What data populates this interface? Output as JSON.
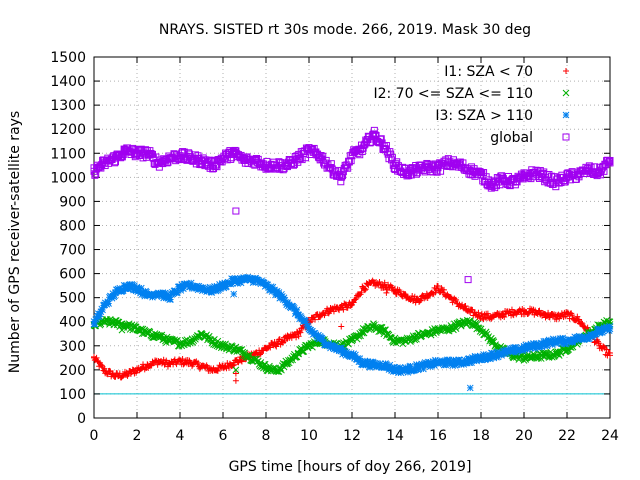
{
  "chart_data": {
    "type": "scatter",
    "title": "NRAYS. SISTED rt 30s mode. 266, 2019. Mask 30 deg",
    "xlabel": "GPS time [hours of doy 266, 2019]",
    "ylabel": "Number of GPS receiver-satellite rays",
    "xlim": [
      0,
      24
    ],
    "ylim": [
      0,
      1500
    ],
    "grid": true,
    "legend_position": "top-right",
    "x_ticks": [
      0,
      2,
      4,
      6,
      8,
      10,
      12,
      14,
      16,
      18,
      20,
      22,
      24
    ],
    "y_ticks": [
      0,
      100,
      200,
      300,
      400,
      500,
      600,
      700,
      800,
      900,
      1000,
      1100,
      1200,
      1300,
      1400,
      1500
    ],
    "mask_line": {
      "y": 100,
      "color": "#00c0d0"
    },
    "series": [
      {
        "name": "I1: SZA < 70",
        "marker": "+",
        "color": "#ff0000",
        "x": [
          0,
          0.5,
          1,
          1.5,
          2,
          2.5,
          3,
          3.5,
          4,
          4.5,
          5,
          5.5,
          6,
          6.5,
          7,
          7.5,
          8,
          8.5,
          9,
          9.5,
          10,
          10.5,
          11,
          11.5,
          12,
          12.5,
          13,
          13.5,
          14,
          14.5,
          15,
          15.5,
          16,
          16.5,
          17,
          17.5,
          18,
          18.5,
          19,
          19.5,
          20,
          20.5,
          21,
          21.5,
          22,
          22.5,
          23,
          23.5,
          24
        ],
        "y": [
          250,
          195,
          175,
          180,
          200,
          220,
          235,
          225,
          235,
          230,
          215,
          200,
          210,
          230,
          250,
          265,
          290,
          310,
          330,
          350,
          400,
          430,
          450,
          460,
          470,
          540,
          560,
          550,
          530,
          510,
          490,
          510,
          540,
          505,
          470,
          440,
          425,
          420,
          430,
          440,
          445,
          440,
          430,
          420,
          430,
          410,
          360,
          300,
          260
        ],
        "outliers": [
          [
            6.6,
            155
          ],
          [
            6.6,
            185
          ],
          [
            11.5,
            380
          ],
          [
            13.6,
            520
          ],
          [
            17.3,
            450
          ]
        ]
      },
      {
        "name": "I2: 70 <= SZA <= 110",
        "marker": "x",
        "color": "#00b000",
        "x": [
          0,
          0.5,
          1,
          1.5,
          2,
          2.5,
          3,
          3.5,
          4,
          4.5,
          5,
          5.5,
          6,
          6.5,
          7,
          7.5,
          8,
          8.5,
          9,
          9.5,
          10,
          10.5,
          11,
          11.5,
          12,
          12.5,
          13,
          13.5,
          14,
          14.5,
          15,
          15.5,
          16,
          16.5,
          17,
          17.5,
          18,
          18.5,
          19,
          19.5,
          20,
          20.5,
          21,
          21.5,
          22,
          22.5,
          23,
          23.5,
          24
        ],
        "y": [
          385,
          400,
          395,
          385,
          370,
          350,
          340,
          320,
          310,
          320,
          350,
          320,
          300,
          290,
          270,
          240,
          210,
          195,
          230,
          270,
          300,
          320,
          310,
          300,
          320,
          360,
          380,
          360,
          320,
          320,
          340,
          350,
          365,
          370,
          390,
          400,
          370,
          320,
          280,
          260,
          250,
          255,
          260,
          265,
          290,
          320,
          350,
          380,
          400
        ],
        "outliers": [
          [
            6.6,
            200
          ],
          [
            1.3,
            365
          ]
        ]
      },
      {
        "name": "I3: SZA > 110",
        "marker": "*",
        "color": "#0080f0",
        "x": [
          0,
          0.5,
          1,
          1.5,
          2,
          2.5,
          3,
          3.5,
          4,
          4.5,
          5,
          5.5,
          6,
          6.5,
          7,
          7.5,
          8,
          8.5,
          9,
          9.5,
          10,
          10.5,
          11,
          11.5,
          12,
          12.5,
          13,
          13.5,
          14,
          14.5,
          15,
          15.5,
          16,
          16.5,
          17,
          17.5,
          18,
          18.5,
          19,
          19.5,
          20,
          20.5,
          21,
          21.5,
          22,
          22.5,
          23,
          23.5,
          24
        ],
        "y": [
          390,
          470,
          520,
          550,
          540,
          510,
          520,
          500,
          540,
          550,
          540,
          530,
          550,
          570,
          575,
          575,
          550,
          520,
          480,
          430,
          370,
          330,
          300,
          280,
          260,
          230,
          220,
          220,
          200,
          200,
          210,
          220,
          230,
          230,
          230,
          240,
          250,
          260,
          270,
          280,
          290,
          300,
          310,
          320,
          320,
          330,
          340,
          360,
          370
        ],
        "outliers": [
          [
            17.5,
            125
          ],
          [
            6.5,
            515
          ]
        ]
      },
      {
        "name": "global",
        "marker": "square",
        "color": "#a000f0",
        "x": [
          0,
          0.5,
          1,
          1.5,
          2,
          2.5,
          3,
          3.5,
          4,
          4.5,
          5,
          5.5,
          6,
          6.5,
          7,
          7.5,
          8,
          8.5,
          9,
          9.5,
          10,
          10.5,
          11,
          11.5,
          12,
          12.5,
          13,
          13.5,
          14,
          14.5,
          15,
          15.5,
          16,
          16.5,
          17,
          17.5,
          18,
          18.5,
          19,
          19.5,
          20,
          20.5,
          21,
          21.5,
          22,
          22.5,
          23,
          23.5,
          24
        ],
        "y": [
          1025,
          1060,
          1080,
          1110,
          1100,
          1100,
          1060,
          1080,
          1090,
          1080,
          1070,
          1050,
          1080,
          1100,
          1070,
          1070,
          1050,
          1050,
          1050,
          1080,
          1110,
          1090,
          1040,
          1000,
          1090,
          1120,
          1180,
          1130,
          1050,
          1020,
          1030,
          1040,
          1040,
          1060,
          1050,
          1030,
          1010,
          970,
          990,
          980,
          1000,
          1020,
          1000,
          980,
          1000,
          1010,
          1030,
          1020,
          1070
        ],
        "outliers": [
          [
            6.6,
            860
          ],
          [
            17.4,
            575
          ]
        ]
      }
    ]
  }
}
